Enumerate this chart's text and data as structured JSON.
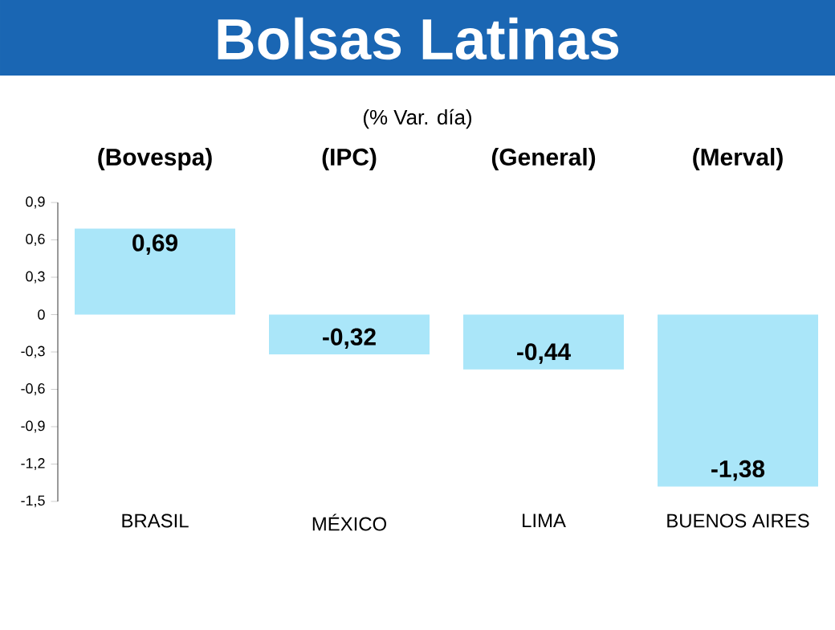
{
  "chart_data": {
    "type": "bar",
    "title": "Bolsas Latinas",
    "subtitle": "(% Var. día)",
    "categories": [
      "BRASIL",
      "MÉXICO",
      "LIMA",
      "BUENOS AIRES"
    ],
    "values": [
      0.69,
      -0.32,
      -0.44,
      -1.38
    ],
    "value_labels": [
      "0,69",
      "-0,32",
      "-0,44",
      "-1,38"
    ],
    "color": "#aae6f9",
    "ylim": [
      -1.5,
      0.9
    ],
    "yticks": [
      {
        "value": 0.9,
        "label": "0,9"
      },
      {
        "value": 0.6,
        "label": "0,6"
      },
      {
        "value": 0.3,
        "label": "0,3"
      },
      0,
      {
        "value": -0.3,
        "label": "-0,3"
      },
      {
        "value": -0.6,
        "label": "-0,6"
      },
      {
        "value": -0.9,
        "label": "-0,9"
      },
      {
        "value": -1.2,
        "label": "-1,2"
      },
      {
        "value": -1.5,
        "label": "-1,5"
      }
    ],
    "annotations": [
      "(Bovespa)",
      "(IPC)",
      "(General)",
      "(Merval)"
    ],
    "grid": false
  }
}
